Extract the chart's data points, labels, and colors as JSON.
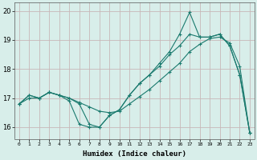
{
  "xlabel": "Humidex (Indice chaleur)",
  "xlim": [
    -0.5,
    23.5
  ],
  "ylim": [
    15.6,
    20.3
  ],
  "yticks": [
    16,
    17,
    18,
    19,
    20
  ],
  "xticks": [
    0,
    1,
    2,
    3,
    4,
    5,
    6,
    7,
    8,
    9,
    10,
    11,
    12,
    13,
    14,
    15,
    16,
    17,
    18,
    19,
    20,
    21,
    22,
    23
  ],
  "bg_color": "#d8eeea",
  "line_color": "#1a7a6e",
  "grid_color": "#c8b8b8",
  "line1_x": [
    0,
    1,
    2,
    3,
    4,
    5,
    6,
    7,
    8,
    9,
    10,
    11,
    12,
    13,
    14,
    15,
    16,
    17,
    18,
    19,
    20,
    21,
    22,
    23
  ],
  "line1_y": [
    16.8,
    17.1,
    17.0,
    17.2,
    17.1,
    16.9,
    16.1,
    16.0,
    16.0,
    16.4,
    16.6,
    17.1,
    17.5,
    17.8,
    18.1,
    18.5,
    18.8,
    19.2,
    19.1,
    19.1,
    19.2,
    18.8,
    17.8,
    15.8
  ],
  "line2_x": [
    0,
    1,
    2,
    3,
    4,
    5,
    6,
    7,
    8,
    9,
    10,
    11,
    12,
    13,
    14,
    15,
    16,
    17,
    18,
    19,
    20,
    21,
    22,
    23
  ],
  "line2_y": [
    16.8,
    17.0,
    17.0,
    17.2,
    17.1,
    17.0,
    16.85,
    16.7,
    16.55,
    16.5,
    16.55,
    16.8,
    17.05,
    17.3,
    17.6,
    17.9,
    18.2,
    18.6,
    18.85,
    19.05,
    19.1,
    18.9,
    18.1,
    15.8
  ],
  "line3_x": [
    0,
    1,
    2,
    3,
    4,
    5,
    6,
    7,
    8,
    9,
    10,
    11,
    12,
    13,
    14,
    15,
    16,
    17,
    18,
    19,
    20,
    21,
    22,
    23
  ],
  "line3_y": [
    16.8,
    17.1,
    17.0,
    17.2,
    17.1,
    17.0,
    16.8,
    16.1,
    16.0,
    16.4,
    16.6,
    17.1,
    17.5,
    17.8,
    18.2,
    18.6,
    19.2,
    19.95,
    19.1,
    19.1,
    19.2,
    18.8,
    17.8,
    15.8
  ]
}
